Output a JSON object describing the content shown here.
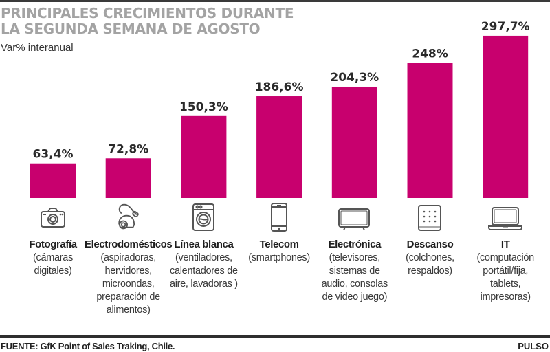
{
  "header": {
    "title_line1": "PRINCIPALES CRECIMIENTOS  DURANTE",
    "title_line2": "LA SEGUNDA SEMANA DE AGOSTO",
    "subtitle": "Var% interanual"
  },
  "colors": {
    "bar": "#c8006e",
    "title": "#a3a3a3",
    "text": "#2a2a2a"
  },
  "chart_data": {
    "type": "bar",
    "title": "PRINCIPALES CRECIMIENTOS DURANTE LA SEGUNDA SEMANA DE AGOSTO",
    "subtitle": "Var% interanual",
    "xlabel": "",
    "ylabel": "Var% interanual",
    "ylim": [
      0,
      300
    ],
    "grid": false,
    "categories": [
      "Fotografía",
      "Electrodomésticos",
      "Línea blanca",
      "Telecom",
      "Electrónica",
      "Descanso",
      "IT"
    ],
    "values": [
      63.4,
      72.8,
      150.3,
      186.6,
      204.3,
      248,
      297.7
    ],
    "value_labels": [
      "63,4%",
      "72,8%",
      "150,3%",
      "186,6%",
      "204,3%",
      "248%",
      "297,7%"
    ],
    "category_details": [
      [
        "(cámaras",
        "digitales)"
      ],
      [
        "(aspiradoras,",
        "hervidores,",
        "microondas,",
        "preparación de",
        "alimentos)"
      ],
      [
        "(ventiladores,",
        "calentadores de",
        "aire, lavadoras )"
      ],
      [
        "(smartphones)"
      ],
      [
        "(televisores,",
        "sistemas de",
        "audio, consolas",
        "de video juego)"
      ],
      [
        "(colchones,",
        "respaldos)"
      ],
      [
        "(computación",
        "portátil/fija,",
        "tablets,",
        "impresoras)"
      ]
    ],
    "icons": [
      "camera-icon",
      "vacuum-cleaner-icon",
      "washing-machine-icon",
      "smartphone-icon",
      "tv-icon",
      "mattress-icon",
      "laptop-icon"
    ]
  },
  "footer": {
    "source": "FUENTE: GfK Point of Sales Traking, Chile.",
    "brand": "PULSO"
  }
}
